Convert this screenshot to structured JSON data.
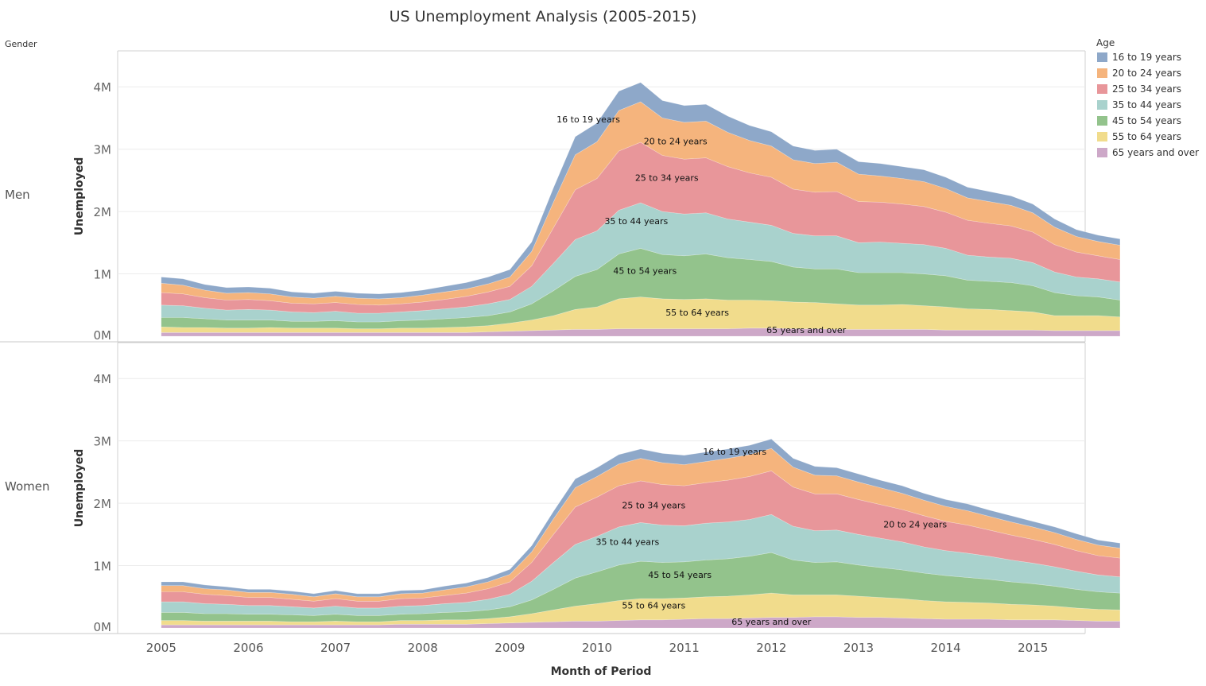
{
  "chart_data": {
    "type": "area",
    "stacked": true,
    "title": "US Unemployment Analysis (2005-2015)",
    "facet_label": "Gender",
    "xlabel": "Month of Period",
    "ylabel": "Unemployed",
    "x_start": 2005.0,
    "x_step": 0.25,
    "xlim": [
      2004.5,
      2015.6
    ],
    "ylim": [
      0,
      4500000
    ],
    "yticks": [
      0,
      1000000,
      2000000,
      3000000,
      4000000
    ],
    "ytick_labels": [
      "0M",
      "1M",
      "2M",
      "3M",
      "4M"
    ],
    "xticks": [
      2005,
      2006,
      2007,
      2008,
      2009,
      2010,
      2011,
      2012,
      2013,
      2014,
      2015
    ],
    "xtick_labels": [
      "2005",
      "2006",
      "2007",
      "2008",
      "2009",
      "2010",
      "2011",
      "2012",
      "2013",
      "2014",
      "2015"
    ],
    "grid": true,
    "legend": {
      "title": "Age",
      "position": "right",
      "items": [
        "16 to 19 years",
        "20 to 24 years",
        "25 to 34 years",
        "35 to 44 years",
        "45 to 54 years",
        "55 to 64 years",
        "65 years and over"
      ],
      "colors": [
        "#8ea8c9",
        "#f5b47d",
        "#e8969a",
        "#a9d2cd",
        "#93c38c",
        "#f1dc8c",
        "#cda8c8"
      ]
    },
    "panels": [
      {
        "name": "Men",
        "series": [
          {
            "name": "65 years and over",
            "values": [
              60000,
              60000,
              60000,
              60000,
              60000,
              60000,
              60000,
              60000,
              60000,
              60000,
              60000,
              60000,
              60000,
              60000,
              60000,
              70000,
              80000,
              90000,
              100000,
              110000,
              110000,
              120000,
              120000,
              120000,
              120000,
              120000,
              120000,
              130000,
              130000,
              120000,
              120000,
              110000,
              110000,
              110000,
              110000,
              110000,
              100000,
              100000,
              100000,
              100000,
              100000,
              90000,
              90000,
              90000,
              90000
            ]
          },
          {
            "name": "55 to 64 years",
            "values": [
              90000,
              80000,
              80000,
              70000,
              70000,
              80000,
              70000,
              70000,
              70000,
              60000,
              60000,
              70000,
              70000,
              80000,
              90000,
              100000,
              130000,
              170000,
              230000,
              320000,
              360000,
              480000,
              510000,
              480000,
              470000,
              480000,
              460000,
              450000,
              440000,
              430000,
              420000,
              410000,
              390000,
              390000,
              400000,
              380000,
              370000,
              340000,
              330000,
              310000,
              290000,
              240000,
              240000,
              240000,
              220000
            ]
          },
          {
            "name": "45 to 54 years",
            "values": [
              150000,
              160000,
              140000,
              130000,
              130000,
              120000,
              110000,
              110000,
              120000,
              110000,
              110000,
              120000,
              130000,
              140000,
              150000,
              160000,
              180000,
              260000,
              400000,
              530000,
              600000,
              720000,
              780000,
              710000,
              700000,
              720000,
              680000,
              650000,
              630000,
              560000,
              540000,
              560000,
              520000,
              520000,
              510000,
              510000,
              500000,
              460000,
              450000,
              450000,
              420000,
              370000,
              320000,
              300000,
              270000
            ]
          },
          {
            "name": "35 to 44 years",
            "values": [
              200000,
              190000,
              170000,
              160000,
              170000,
              160000,
              150000,
              140000,
              150000,
              140000,
              140000,
              140000,
              150000,
              160000,
              170000,
              190000,
              200000,
              280000,
              440000,
              590000,
              620000,
              700000,
              730000,
              690000,
              670000,
              660000,
              620000,
              600000,
              580000,
              540000,
              530000,
              530000,
              480000,
              490000,
              470000,
              470000,
              440000,
              400000,
              390000,
              390000,
              370000,
              330000,
              300000,
              290000,
              290000
            ]
          },
          {
            "name": "25 to 34 years",
            "values": [
              200000,
              190000,
              170000,
              160000,
              160000,
              150000,
              140000,
              140000,
              140000,
              140000,
              130000,
              130000,
              140000,
              150000,
              170000,
              190000,
              210000,
              330000,
              570000,
              800000,
              840000,
              950000,
              970000,
              900000,
              880000,
              880000,
              840000,
              790000,
              770000,
              710000,
              700000,
              710000,
              660000,
              640000,
              630000,
              610000,
              580000,
              560000,
              540000,
              520000,
              490000,
              440000,
              400000,
              370000,
              360000
            ]
          },
          {
            "name": "20 to 24 years",
            "values": [
              150000,
              140000,
              120000,
              110000,
              110000,
              110000,
              100000,
              90000,
              100000,
              100000,
              100000,
              100000,
              110000,
              120000,
              120000,
              130000,
              150000,
              230000,
              410000,
              560000,
              590000,
              650000,
              650000,
              600000,
              590000,
              590000,
              550000,
              520000,
              500000,
              470000,
              460000,
              470000,
              440000,
              420000,
              410000,
              400000,
              380000,
              360000,
              350000,
              330000,
              310000,
              280000,
              250000,
              230000,
              230000
            ]
          },
          {
            "name": "16 to 19 years",
            "values": [
              100000,
              100000,
              90000,
              90000,
              90000,
              90000,
              80000,
              80000,
              80000,
              80000,
              80000,
              80000,
              80000,
              90000,
              100000,
              110000,
              120000,
              150000,
              230000,
              290000,
              300000,
              310000,
              310000,
              280000,
              270000,
              270000,
              260000,
              240000,
              230000,
              220000,
              210000,
              210000,
              200000,
              200000,
              190000,
              190000,
              180000,
              170000,
              160000,
              150000,
              140000,
              130000,
              110000,
              100000,
              100000
            ]
          }
        ]
      },
      {
        "name": "Women",
        "series": [
          {
            "name": "65 years and over",
            "values": [
              50000,
              50000,
              50000,
              50000,
              50000,
              50000,
              50000,
              50000,
              50000,
              50000,
              50000,
              60000,
              60000,
              60000,
              60000,
              70000,
              80000,
              90000,
              100000,
              110000,
              110000,
              120000,
              130000,
              130000,
              140000,
              150000,
              150000,
              160000,
              170000,
              170000,
              180000,
              180000,
              170000,
              170000,
              160000,
              150000,
              140000,
              140000,
              140000,
              130000,
              130000,
              130000,
              120000,
              110000,
              110000
            ]
          },
          {
            "name": "55 to 64 years",
            "values": [
              70000,
              70000,
              60000,
              60000,
              60000,
              60000,
              50000,
              50000,
              60000,
              50000,
              50000,
              60000,
              60000,
              70000,
              70000,
              80000,
              100000,
              140000,
              190000,
              240000,
              280000,
              320000,
              340000,
              340000,
              340000,
              350000,
              360000,
              370000,
              390000,
              360000,
              350000,
              350000,
              340000,
              320000,
              310000,
              290000,
              280000,
              270000,
              260000,
              250000,
              240000,
              220000,
              200000,
              190000,
              180000
            ]
          },
          {
            "name": "45 to 54 years",
            "values": [
              130000,
              130000,
              120000,
              120000,
              110000,
              110000,
              110000,
              100000,
              110000,
              100000,
              100000,
              100000,
              110000,
              120000,
              130000,
              140000,
              160000,
              220000,
              330000,
              450000,
              510000,
              570000,
              600000,
              580000,
              580000,
              590000,
              600000,
              620000,
              650000,
              560000,
              520000,
              530000,
              500000,
              480000,
              460000,
              440000,
              420000,
              400000,
              380000,
              360000,
              340000,
              320000,
              300000,
              280000,
              270000
            ]
          },
          {
            "name": "35 to 44 years",
            "values": [
              170000,
              170000,
              160000,
              150000,
              140000,
              140000,
              130000,
              120000,
              130000,
              120000,
              120000,
              130000,
              130000,
              140000,
              150000,
              170000,
              200000,
              300000,
              430000,
              540000,
              570000,
              610000,
              620000,
              600000,
              580000,
              590000,
              590000,
              590000,
              610000,
              540000,
              510000,
              510000,
              490000,
              470000,
              450000,
              420000,
              400000,
              390000,
              370000,
              350000,
              330000,
              310000,
              290000,
              270000,
              260000
            ]
          },
          {
            "name": "25 to 34 years",
            "values": [
              160000,
              160000,
              150000,
              140000,
              130000,
              130000,
              120000,
              110000,
              120000,
              110000,
              110000,
              120000,
              120000,
              130000,
              150000,
              170000,
              200000,
              300000,
              450000,
              600000,
              630000,
              660000,
              670000,
              650000,
              640000,
              650000,
              670000,
              690000,
              700000,
              630000,
              590000,
              580000,
              560000,
              540000,
              520000,
              500000,
              470000,
              450000,
              420000,
              400000,
              380000,
              360000,
              330000,
              310000,
              300000
            ]
          },
          {
            "name": "20 to 24 years",
            "values": [
              100000,
              100000,
              90000,
              90000,
              80000,
              80000,
              80000,
              70000,
              80000,
              70000,
              70000,
              80000,
              80000,
              90000,
              100000,
              110000,
              120000,
              170000,
              250000,
              310000,
              330000,
              350000,
              360000,
              350000,
              340000,
              340000,
              350000,
              350000,
              360000,
              320000,
              300000,
              290000,
              280000,
              270000,
              260000,
              250000,
              240000,
              230000,
              220000,
              210000,
              200000,
              190000,
              180000,
              170000,
              160000
            ]
          },
          {
            "name": "16 to 19 years",
            "values": [
              60000,
              60000,
              60000,
              50000,
              50000,
              50000,
              50000,
              50000,
              50000,
              50000,
              50000,
              50000,
              50000,
              60000,
              60000,
              70000,
              80000,
              100000,
              120000,
              140000,
              140000,
              150000,
              150000,
              150000,
              150000,
              150000,
              150000,
              150000,
              150000,
              140000,
              140000,
              130000,
              130000,
              120000,
              120000,
              110000,
              110000,
              110000,
              100000,
              100000,
              90000,
              90000,
              90000,
              80000,
              80000
            ]
          }
        ]
      }
    ],
    "annotations": [
      {
        "panel": "Men",
        "text": "16 to 19 years",
        "x": 2009.9,
        "y": 3430000
      },
      {
        "panel": "Men",
        "text": "20 to 24 years",
        "x": 2010.9,
        "y": 3080000
      },
      {
        "panel": "Men",
        "text": "25 to 34 years",
        "x": 2010.8,
        "y": 2490000
      },
      {
        "panel": "Men",
        "text": "35 to 44 years",
        "x": 2010.45,
        "y": 1800000
      },
      {
        "panel": "Men",
        "text": "45 to 54 years",
        "x": 2010.55,
        "y": 1000000
      },
      {
        "panel": "Men",
        "text": "55 to 64 years",
        "x": 2011.15,
        "y": 330000
      },
      {
        "panel": "Men",
        "text": "65 years and over",
        "x": 2012.4,
        "y": 50000
      },
      {
        "panel": "Women",
        "text": "16 to 19 years",
        "x": 2011.58,
        "y": 2780000
      },
      {
        "panel": "Women",
        "text": "25 to 34 years",
        "x": 2010.65,
        "y": 1920000
      },
      {
        "panel": "Women",
        "text": "20 to 24 years",
        "x": 2013.65,
        "y": 1610000
      },
      {
        "panel": "Women",
        "text": "35 to 44 years",
        "x": 2010.35,
        "y": 1330000
      },
      {
        "panel": "Women",
        "text": "45 to 54 years",
        "x": 2010.95,
        "y": 800000
      },
      {
        "panel": "Women",
        "text": "55 to 64 years",
        "x": 2010.65,
        "y": 310000
      },
      {
        "panel": "Women",
        "text": "65 years and over",
        "x": 2012.0,
        "y": 50000
      }
    ]
  }
}
